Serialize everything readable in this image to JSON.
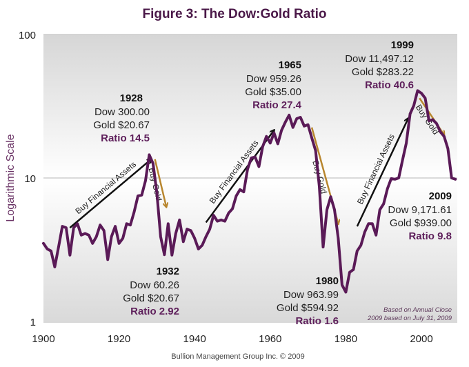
{
  "chart_data": {
    "type": "line",
    "title": "Figure 3: The Dow:Gold Ratio",
    "xlabel": "",
    "ylabel": "Logarithmic Scale",
    "yscale": "log",
    "ylim": [
      1,
      100
    ],
    "xlim": [
      1900,
      2009
    ],
    "grid": true,
    "x_ticks": [
      "1900",
      "1920",
      "1940",
      "1960",
      "1980",
      "2000"
    ],
    "x_tick_values": [
      1900,
      1920,
      1940,
      1960,
      1980,
      2000
    ],
    "y_ticks": [
      "1",
      "10",
      "100"
    ],
    "y_tick_values": [
      1,
      10,
      100
    ],
    "line_color": "#5a1a57",
    "series": [
      {
        "name": "Dow:Gold Ratio",
        "x": [
          1900,
          1901,
          1902,
          1903,
          1904,
          1905,
          1906,
          1907,
          1908,
          1909,
          1910,
          1911,
          1912,
          1913,
          1914,
          1915,
          1916,
          1917,
          1918,
          1919,
          1920,
          1921,
          1922,
          1923,
          1924,
          1925,
          1926,
          1927,
          1928,
          1929,
          1930,
          1931,
          1932,
          1933,
          1934,
          1935,
          1936,
          1937,
          1938,
          1939,
          1940,
          1941,
          1942,
          1943,
          1944,
          1945,
          1946,
          1947,
          1948,
          1949,
          1950,
          1951,
          1952,
          1953,
          1954,
          1955,
          1956,
          1957,
          1958,
          1959,
          1960,
          1961,
          1962,
          1963,
          1964,
          1965,
          1966,
          1967,
          1968,
          1969,
          1970,
          1971,
          1972,
          1973,
          1974,
          1975,
          1976,
          1977,
          1978,
          1979,
          1980,
          1981,
          1982,
          1983,
          1984,
          1985,
          1986,
          1987,
          1988,
          1989,
          1990,
          1991,
          1992,
          1993,
          1994,
          1995,
          1996,
          1997,
          1998,
          1999,
          2000,
          2001,
          2002,
          2003,
          2004,
          2005,
          2006,
          2007,
          2008,
          2009
        ],
        "values": [
          3.5,
          3.2,
          3.1,
          2.4,
          3.3,
          4.6,
          4.5,
          2.9,
          4.5,
          4.8,
          4.0,
          4.1,
          4.0,
          3.5,
          3.9,
          4.7,
          4.3,
          2.7,
          3.9,
          4.6,
          3.5,
          3.8,
          4.8,
          4.7,
          5.8,
          7.5,
          7.6,
          9.6,
          14.5,
          12.6,
          7.9,
          3.9,
          2.92,
          4.8,
          2.9,
          4.1,
          5.1,
          3.6,
          4.4,
          4.3,
          3.8,
          3.2,
          3.4,
          3.9,
          4.4,
          5.5,
          5.0,
          5.1,
          5.0,
          5.7,
          6.1,
          7.5,
          8.3,
          8.0,
          11.5,
          13.8,
          14.0,
          12.0,
          16.5,
          19.5,
          17.5,
          20.6,
          17.3,
          21.5,
          24.5,
          27.4,
          22.5,
          25.9,
          26.5,
          23.0,
          23.5,
          19.0,
          15.5,
          8.7,
          3.3,
          6.0,
          7.4,
          6.0,
          3.8,
          1.8,
          1.6,
          2.2,
          2.3,
          3.1,
          3.4,
          4.2,
          4.8,
          4.8,
          4.0,
          6.0,
          6.6,
          8.4,
          9.9,
          9.8,
          10.0,
          13.3,
          17.5,
          28.0,
          32.0,
          40.6,
          39.0,
          36.0,
          25.0,
          25.5,
          24.0,
          21.0,
          19.5,
          16.0,
          10.0,
          9.8
        ]
      }
    ],
    "annotations": [
      {
        "id": "a1928",
        "year": "1928",
        "dow": "Dow 300.00",
        "gold": "Gold $20.67",
        "ratio": "Ratio 14.5"
      },
      {
        "id": "a1932",
        "year": "1932",
        "dow": "Dow 60.26",
        "gold": "Gold $20.67",
        "ratio": "Ratio 2.92"
      },
      {
        "id": "a1965",
        "year": "1965",
        "dow": "Dow 959.26",
        "gold": "Gold $35.00",
        "ratio": "Ratio 27.4"
      },
      {
        "id": "a1980",
        "year": "1980",
        "dow": "Dow 963.99",
        "gold": "Gold $594.92",
        "ratio": "Ratio 1.6"
      },
      {
        "id": "a1999",
        "year": "1999",
        "dow": "Dow 11,497.12",
        "gold": "Gold $283.22",
        "ratio": "Ratio 40.6"
      },
      {
        "id": "a2009",
        "year": "2009",
        "dow": "Dow 9,171.61",
        "gold": "Gold $939.00",
        "ratio": "Ratio 9.8"
      }
    ],
    "arrow_labels": {
      "buy_financial": "Buy Financial Assets",
      "buy_gold": "Buy Gold"
    },
    "arrows": [
      {
        "kind": "buy_financial",
        "from": [
          1907,
          4.5
        ],
        "to": [
          1928.5,
          13.5
        ]
      },
      {
        "kind": "buy_gold",
        "from": [
          1929.5,
          13.5
        ],
        "to": [
          1932.5,
          6.3
        ]
      },
      {
        "kind": "buy_financial",
        "from": [
          1943,
          4.9
        ],
        "to": [
          1961,
          21.5
        ]
      },
      {
        "kind": "buy_gold",
        "from": [
          1971,
          22.5
        ],
        "to": [
          1978,
          4.8
        ]
      },
      {
        "kind": "buy_financial",
        "from": [
          1983,
          4.6
        ],
        "to": [
          1996.5,
          26
        ]
      },
      {
        "kind": "buy_gold",
        "from": [
          1999.5,
          36
        ],
        "to": [
          2006,
          20
        ]
      }
    ],
    "colors": {
      "line": "#5a1a57",
      "buy_financial_arrow": "#111111",
      "buy_gold_arrow": "#b8862e",
      "ratio_text": "#5e1f5b",
      "title": "#4a1848"
    },
    "notes": [
      "Based on Annual Close",
      "2009 based on July 31, 2009"
    ],
    "credit": "Bullion Management Group Inc. © 2009"
  }
}
